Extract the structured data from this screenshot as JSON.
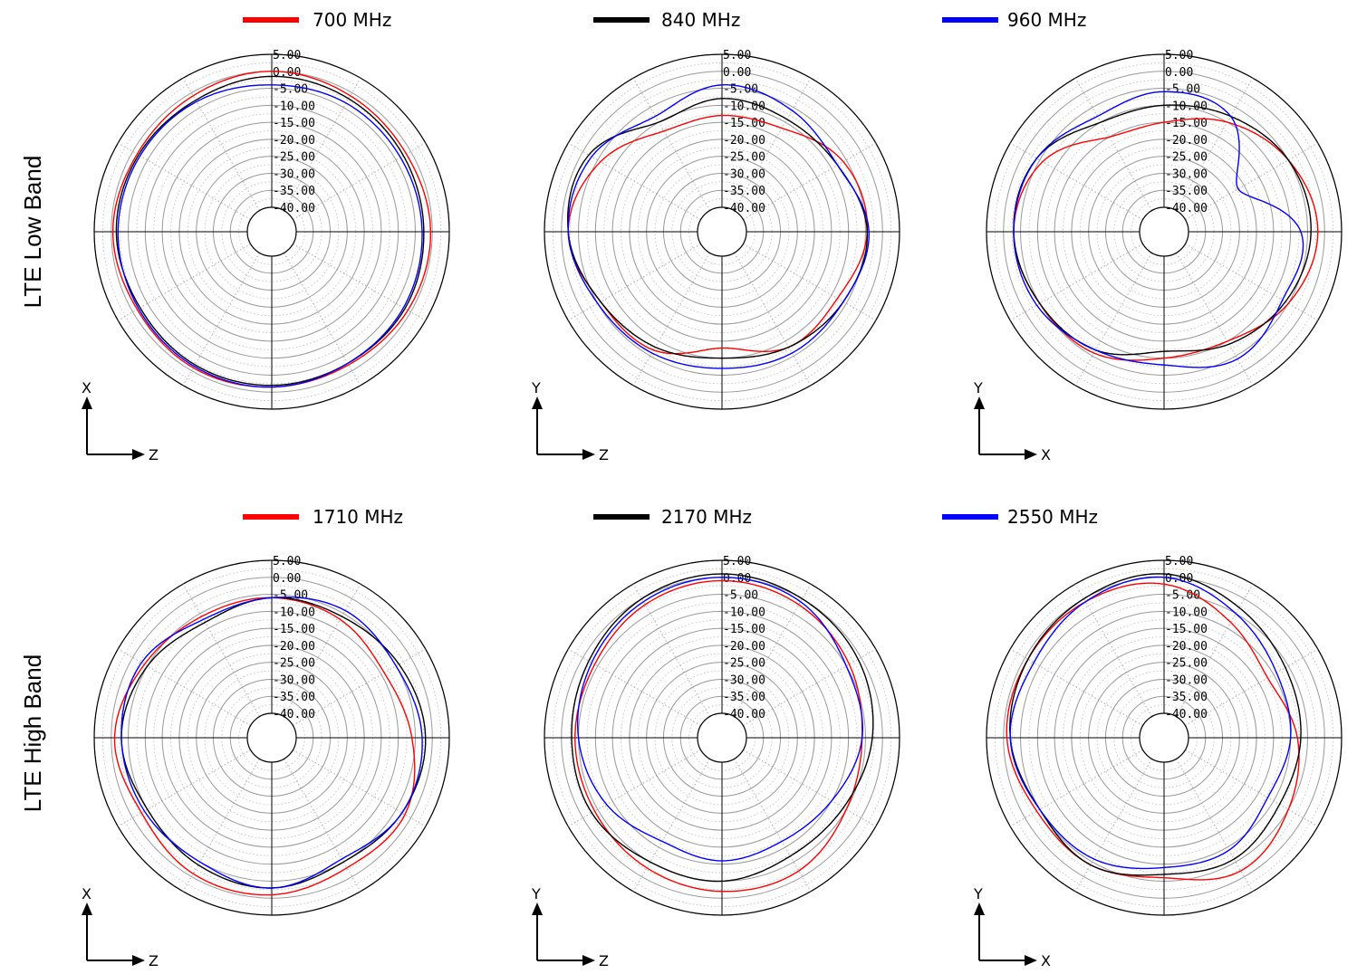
{
  "rows": [
    {
      "label": "LTE Low Band",
      "legend": [
        {
          "name": "700 MHz",
          "color": "#ff0000"
        },
        {
          "name": "840 MHz",
          "color": "#000000"
        },
        {
          "name": "960 MHz",
          "color": "#0000ff"
        }
      ]
    },
    {
      "label": "LTE High Band",
      "legend": [
        {
          "name": "1710 MHz",
          "color": "#ff0000"
        },
        {
          "name": "2170 MHz",
          "color": "#000000"
        },
        {
          "name": "2550 MHz",
          "color": "#0000ff"
        }
      ]
    }
  ],
  "chart_data": [
    {
      "type": "polar",
      "row": 0,
      "col": 0,
      "axis_up": "X",
      "axis_right": "Z",
      "rlim": [
        -40,
        5
      ],
      "r_ticks": [
        "5.00",
        "0.00",
        "-5.00",
        "-10.00",
        "-15.00",
        "-20.00",
        "-25.00",
        "-30.00",
        "-35.00",
        "-40.00"
      ],
      "angles_deg": [
        0,
        30,
        60,
        90,
        120,
        150,
        180,
        210,
        240,
        270,
        300,
        330
      ],
      "series": [
        {
          "name": "700 MHz",
          "color": "#ff0000",
          "values": [
            0,
            -1,
            -1.5,
            -0.5,
            -1,
            -2,
            -1.5,
            -1,
            -1.5,
            -0.5,
            -1.5,
            -1
          ]
        },
        {
          "name": "840 MHz",
          "color": "#000000",
          "values": [
            -1.5,
            -2,
            -2.5,
            -2.5,
            -2,
            -2.5,
            -2,
            -2,
            -2.5,
            -1.5,
            -2,
            -2.5
          ]
        },
        {
          "name": "960 MHz",
          "color": "#0000ff",
          "values": [
            -4,
            -3.5,
            -3.5,
            -3,
            -2.5,
            -2.5,
            -1.5,
            -1.5,
            -2,
            -2,
            -2.5,
            -3
          ]
        }
      ]
    },
    {
      "type": "polar",
      "row": 0,
      "col": 1,
      "axis_up": "Y",
      "axis_right": "Z",
      "rlim": [
        -40,
        5
      ],
      "r_ticks": [
        "5.00",
        "0.00",
        "-5.00",
        "-10.00",
        "-15.00",
        "-20.00",
        "-25.00",
        "-30.00",
        "-35.00",
        "-40.00"
      ],
      "angles_deg": [
        0,
        30,
        60,
        90,
        120,
        150,
        180,
        210,
        240,
        270,
        300,
        330
      ],
      "series": [
        {
          "name": "700 MHz",
          "color": "#ff0000",
          "values": [
            -13,
            -12,
            -6,
            -4.5,
            -8,
            -8,
            -13,
            -7,
            -6,
            -2,
            -6,
            -13
          ]
        },
        {
          "name": "840 MHz",
          "color": "#000000",
          "values": [
            -8,
            -9,
            -8,
            -4.5,
            -6,
            -8,
            -10,
            -8,
            -6,
            -2,
            -2,
            -10
          ]
        },
        {
          "name": "960 MHz",
          "color": "#0000ff",
          "values": [
            -4,
            -6,
            -8,
            -4,
            -6,
            -6,
            -7,
            -6,
            -5,
            -2,
            -3,
            -8
          ]
        }
      ]
    },
    {
      "type": "polar",
      "row": 0,
      "col": 2,
      "axis_up": "Y",
      "axis_right": "X",
      "rlim": [
        -40,
        5
      ],
      "r_ticks": [
        "5.00",
        "0.00",
        "-5.00",
        "-10.00",
        "-15.00",
        "-20.00",
        "-25.00",
        "-30.00",
        "-35.00",
        "-40.00"
      ],
      "angles_deg": [
        0,
        30,
        60,
        90,
        120,
        150,
        180,
        210,
        240,
        270,
        300,
        330
      ],
      "series": [
        {
          "name": "700 MHz",
          "color": "#ff0000",
          "values": [
            -15,
            -10,
            -5,
            -2,
            -5,
            -10,
            -10,
            -6,
            -5,
            -3,
            -6,
            -15
          ]
        },
        {
          "name": "840 MHz",
          "color": "#000000",
          "values": [
            -10,
            -8,
            -5,
            -4,
            -6,
            -9,
            -12,
            -7,
            -5,
            -3,
            -4,
            -10
          ]
        },
        {
          "name": "960 MHz",
          "color": "#0000ff",
          "values": [
            -6,
            -8,
            -22,
            -7,
            -7,
            -4,
            -8,
            -7,
            -4,
            -3,
            -4,
            -8
          ]
        }
      ]
    },
    {
      "type": "polar",
      "row": 1,
      "col": 0,
      "axis_up": "X",
      "axis_right": "Z",
      "rlim": [
        -40,
        5
      ],
      "r_ticks": [
        "5.00",
        "0.00",
        "-5.00",
        "-10.00",
        "-15.00",
        "-20.00",
        "-25.00",
        "-30.00",
        "-35.00",
        "-40.00"
      ],
      "angles_deg": [
        0,
        30,
        60,
        90,
        120,
        150,
        180,
        210,
        240,
        270,
        300,
        330
      ],
      "series": [
        {
          "name": "1710 MHz",
          "color": "#ff0000",
          "values": [
            -6,
            -7,
            -9,
            -6,
            -2,
            -3,
            -1,
            -1,
            -3,
            -1,
            -4,
            -6
          ]
        },
        {
          "name": "2170 MHz",
          "color": "#000000",
          "values": [
            -6,
            -6,
            -4,
            -2,
            -3,
            -5,
            -3,
            -4,
            -5,
            -3,
            -5,
            -8
          ]
        },
        {
          "name": "2550 MHz",
          "color": "#0000ff",
          "values": [
            -6,
            -4,
            -5,
            -3,
            -3,
            -6,
            -3,
            -5,
            -4,
            -3,
            -3,
            -7
          ]
        }
      ]
    },
    {
      "type": "polar",
      "row": 1,
      "col": 1,
      "axis_up": "Y",
      "axis_right": "Z",
      "rlim": [
        -40,
        5
      ],
      "r_ticks": [
        "5.00",
        "0.00",
        "-5.00",
        "-10.00",
        "-15.00",
        "-20.00",
        "-25.00",
        "-30.00",
        "-35.00",
        "-40.00"
      ],
      "angles_deg": [
        0,
        30,
        60,
        90,
        120,
        150,
        180,
        210,
        240,
        270,
        300,
        330
      ],
      "series": [
        {
          "name": "1710 MHz",
          "color": "#ff0000",
          "values": [
            -1,
            -2,
            -4,
            -6,
            -5,
            -2,
            -2,
            -3,
            -4,
            -4,
            -4,
            -2
          ]
        },
        {
          "name": "2170 MHz",
          "color": "#000000",
          "values": [
            1,
            0,
            -1,
            -3,
            -6,
            -7,
            -5,
            -5,
            -3,
            -3,
            -2,
            0
          ]
        },
        {
          "name": "2550 MHz",
          "color": "#0000ff",
          "values": [
            0,
            -1,
            -5,
            -6,
            -10,
            -12,
            -11,
            -12,
            -8,
            -5,
            -3,
            -1
          ]
        }
      ]
    },
    {
      "type": "polar",
      "row": 1,
      "col": 2,
      "axis_up": "Y",
      "axis_right": "X",
      "rlim": [
        -40,
        5
      ],
      "r_ticks": [
        "5.00",
        "0.00",
        "-5.00",
        "-10.00",
        "-15.00",
        "-20.00",
        "-25.00",
        "-30.00",
        "-35.00",
        "-40.00"
      ],
      "angles_deg": [
        0,
        30,
        60,
        90,
        120,
        150,
        180,
        210,
        240,
        270,
        300,
        330
      ],
      "series": [
        {
          "name": "1710 MHz",
          "color": "#ff0000",
          "values": [
            -2,
            -8,
            -12,
            -8,
            -5,
            -2,
            -6,
            -4,
            -4,
            -1,
            -1,
            -1
          ]
        },
        {
          "name": "2170 MHz",
          "color": "#000000",
          "values": [
            1,
            -3,
            -6,
            -7,
            -8,
            -6,
            -7,
            -4,
            -5,
            -2,
            -1,
            0
          ]
        },
        {
          "name": "2550 MHz",
          "color": "#0000ff",
          "values": [
            0,
            -5,
            -9,
            -10,
            -12,
            -9,
            -9,
            -6,
            -5,
            -2,
            -3,
            -1
          ]
        }
      ]
    }
  ]
}
